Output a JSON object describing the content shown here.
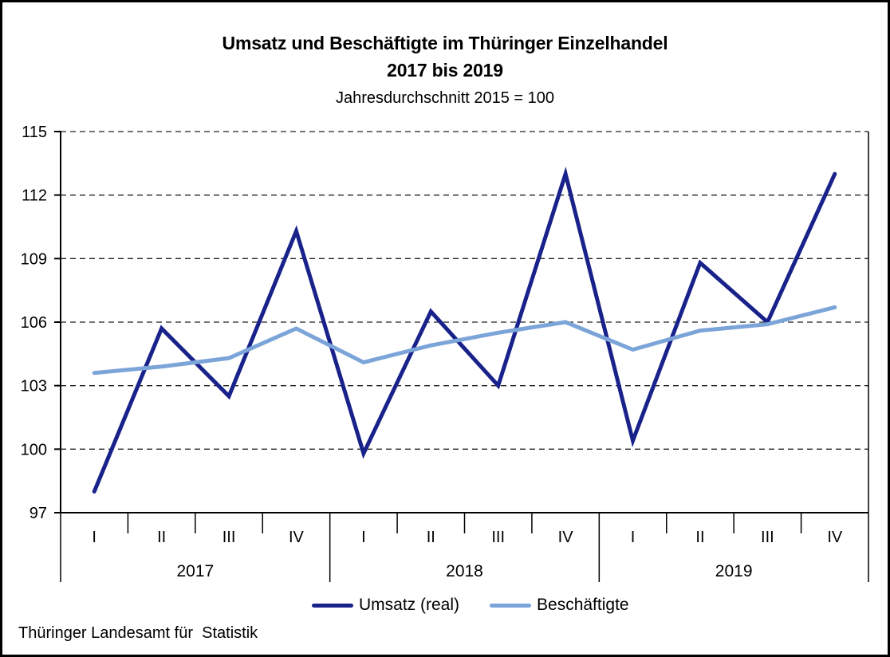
{
  "header": {
    "title_line1": "Umsatz und Beschäftigte im Thüringer Einzelhandel",
    "title_line2": "2017 bis 2019",
    "subtitle": "Jahresdurchschnitt 2015 = 100"
  },
  "footer": {
    "source": "Thüringer Landesamt für  Statistik"
  },
  "chart_data": {
    "type": "line",
    "title": "Umsatz und Beschäftigte im Thüringer Einzelhandel 2017 bis 2019",
    "subtitle": "Jahresdurchschnitt 2015 = 100",
    "x_quarter_labels": [
      "I",
      "II",
      "III",
      "IV",
      "I",
      "II",
      "III",
      "IV",
      "I",
      "II",
      "III",
      "IV"
    ],
    "x_year_labels": [
      "2017",
      "2018",
      "2019"
    ],
    "quarters_per_year": 4,
    "series": [
      {
        "name": "Umsatz (real)",
        "color": "#19228a",
        "stroke_width": 5,
        "values": [
          98.0,
          105.7,
          102.5,
          110.3,
          99.8,
          106.5,
          103.0,
          113.0,
          100.4,
          108.8,
          106.0,
          113.0
        ]
      },
      {
        "name": "Beschäftigte",
        "color": "#7ba4d9",
        "stroke_width": 5,
        "values": [
          103.6,
          103.9,
          104.3,
          105.7,
          104.1,
          104.9,
          105.5,
          106.0,
          104.7,
          105.6,
          105.9,
          106.7
        ]
      }
    ],
    "ylim": [
      97,
      115
    ],
    "yticks": [
      97,
      100,
      103,
      106,
      109,
      112,
      115
    ],
    "grid": {
      "horizontal_dashed": true,
      "color": "#222222"
    },
    "axis_color": "#000000",
    "legend_position": "bottom"
  }
}
